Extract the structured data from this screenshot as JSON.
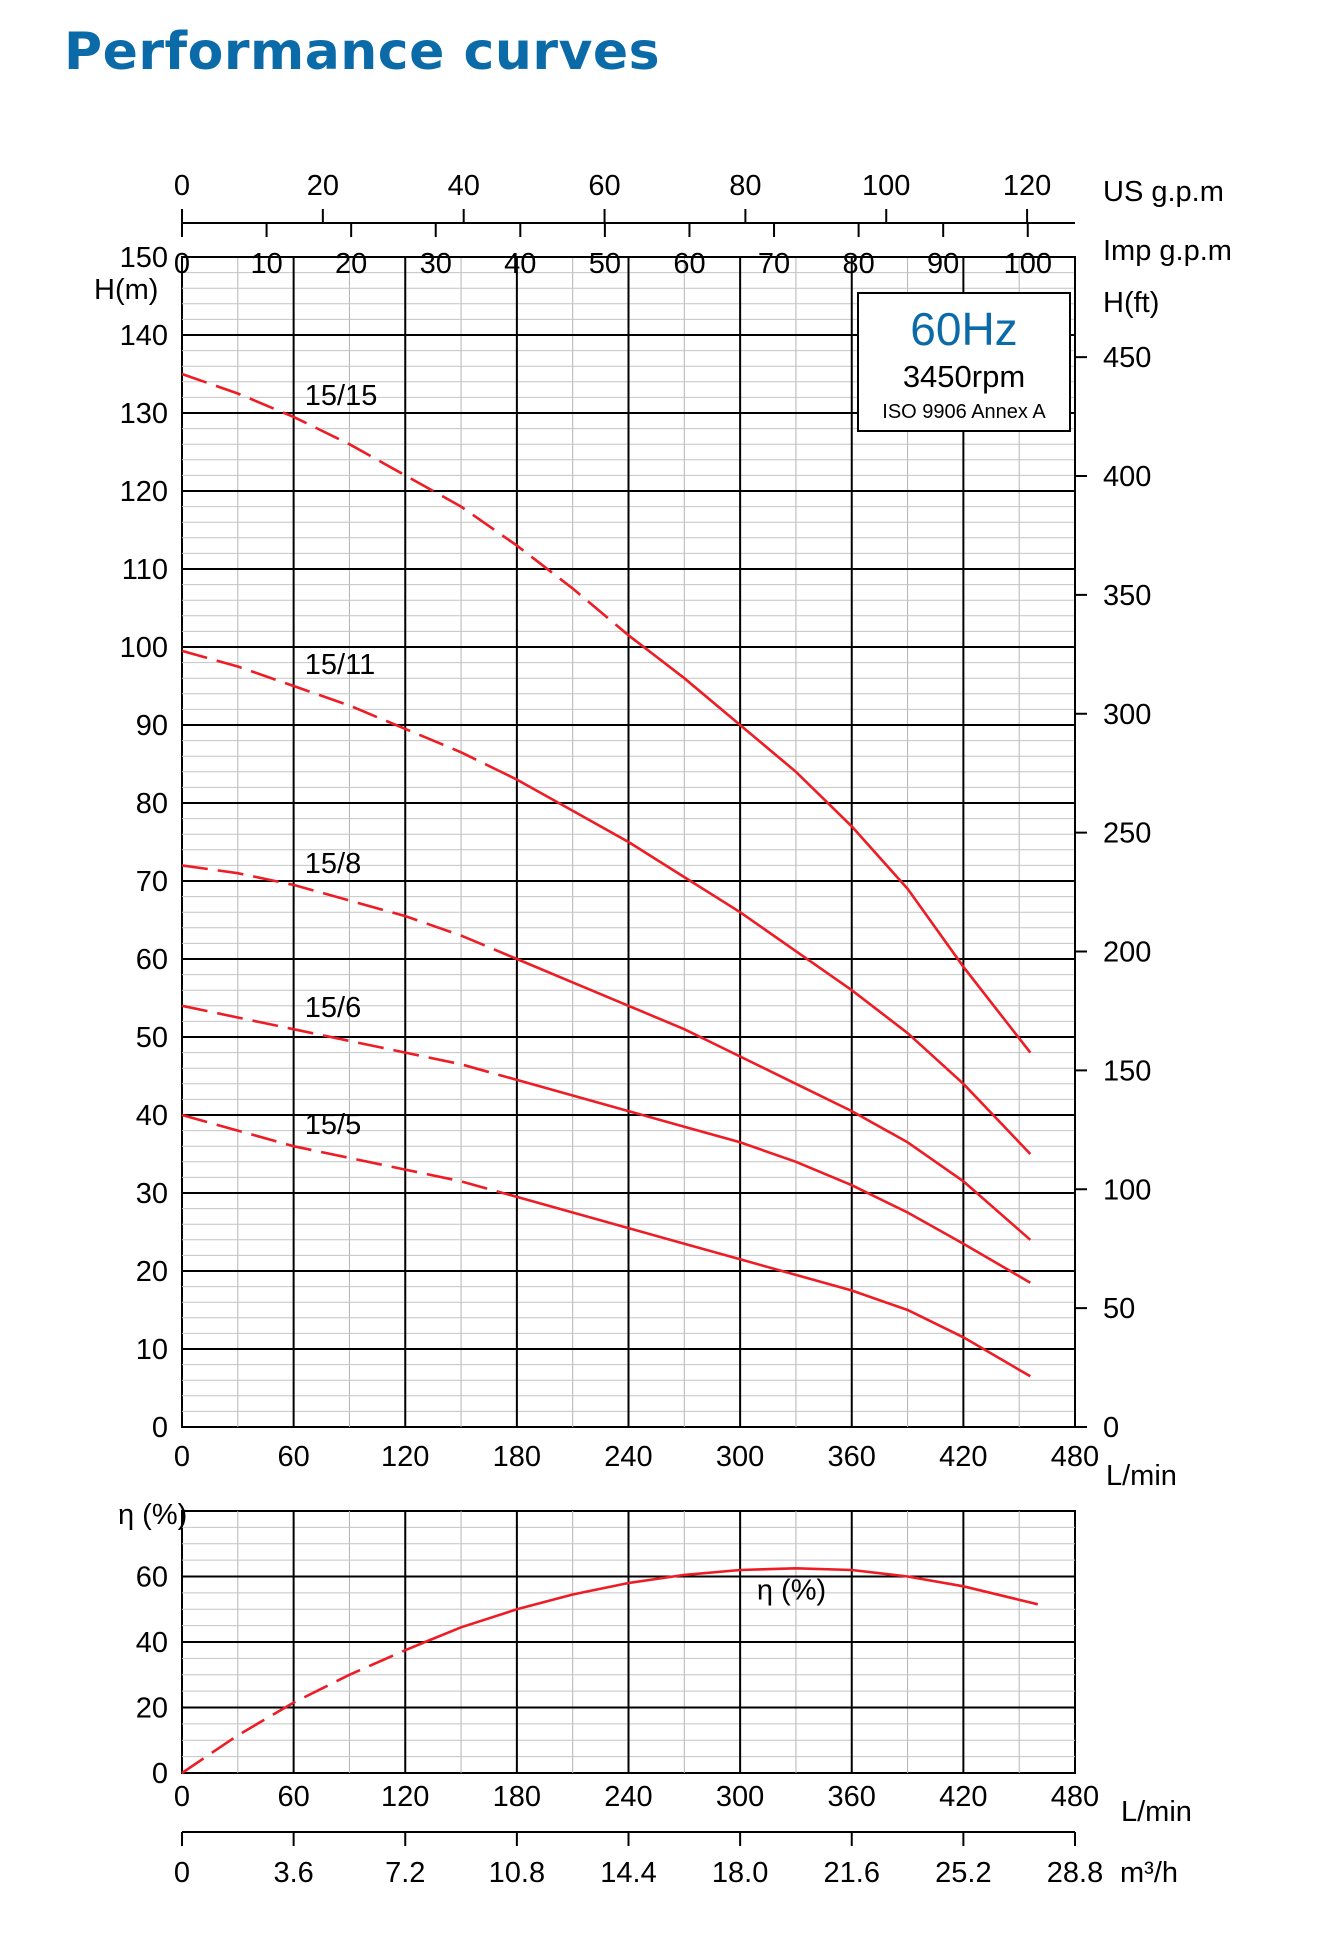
{
  "page": {
    "title": "Performance curves"
  },
  "chart_data": [
    {
      "type": "line",
      "title": "",
      "xlabel": "L/min",
      "ylabel": "H(m)",
      "y2label": "H(ft)",
      "xlim": [
        0,
        480
      ],
      "ylim": [
        0,
        150
      ],
      "y2lim": [
        0,
        450
      ],
      "x_ticks": [
        0,
        60,
        120,
        180,
        240,
        300,
        360,
        420,
        480
      ],
      "y_ticks": [
        0,
        10,
        20,
        30,
        40,
        50,
        60,
        70,
        80,
        90,
        100,
        110,
        120,
        130,
        140,
        150
      ],
      "y2_ticks": [
        0,
        50,
        100,
        150,
        200,
        250,
        300,
        350,
        400,
        450
      ],
      "grid": true,
      "top_axes": [
        {
          "label": "US g.p.m",
          "ticks": [
            0,
            20,
            40,
            60,
            80,
            100,
            120
          ]
        },
        {
          "label": "Imp g.p.m",
          "ticks": [
            0,
            10,
            20,
            30,
            40,
            50,
            60,
            70,
            80,
            90,
            100
          ]
        }
      ],
      "info_box": {
        "frequency": "60Hz",
        "speed": "3450rpm",
        "standard": "ISO 9906 Annex A"
      },
      "series": [
        {
          "name": "15/15",
          "dash_until": 240,
          "color": "#ee1c24",
          "x": [
            0,
            30,
            60,
            90,
            120,
            150,
            180,
            210,
            240,
            270,
            300,
            330,
            360,
            390,
            420,
            456
          ],
          "y": [
            135,
            132.5,
            129.5,
            126,
            122,
            118,
            113,
            107.5,
            101.5,
            96,
            90,
            84,
            77,
            69,
            59,
            48
          ]
        },
        {
          "name": "15/11",
          "dash_until": 170,
          "color": "#ee1c24",
          "x": [
            0,
            30,
            60,
            90,
            120,
            150,
            180,
            210,
            240,
            270,
            300,
            330,
            360,
            390,
            420,
            456
          ],
          "y": [
            99.5,
            97.5,
            95,
            92.5,
            89.5,
            86.5,
            83,
            79,
            75,
            70.5,
            66,
            61,
            56,
            50.5,
            44,
            35
          ]
        },
        {
          "name": "15/8",
          "dash_until": 170,
          "color": "#ee1c24",
          "x": [
            0,
            30,
            60,
            90,
            120,
            150,
            180,
            210,
            240,
            270,
            300,
            330,
            360,
            390,
            420,
            456
          ],
          "y": [
            72,
            71,
            69.5,
            67.5,
            65.5,
            63,
            60,
            57,
            54,
            51,
            47.5,
            44,
            40.5,
            36.5,
            31.5,
            24
          ]
        },
        {
          "name": "15/6",
          "dash_until": 170,
          "color": "#ee1c24",
          "x": [
            0,
            30,
            60,
            90,
            120,
            150,
            180,
            210,
            240,
            270,
            300,
            330,
            360,
            390,
            420,
            456
          ],
          "y": [
            54,
            52.5,
            51,
            49.5,
            48,
            46.5,
            44.5,
            42.5,
            40.5,
            38.5,
            36.5,
            34,
            31,
            27.5,
            23.5,
            18.5
          ]
        },
        {
          "name": "15/5",
          "dash_until": 170,
          "color": "#ee1c24",
          "x": [
            0,
            30,
            60,
            90,
            120,
            150,
            180,
            210,
            240,
            270,
            300,
            330,
            360,
            390,
            420,
            456
          ],
          "y": [
            40,
            38,
            36,
            34.5,
            33,
            31.5,
            29.5,
            27.5,
            25.5,
            23.5,
            21.5,
            19.5,
            17.5,
            15,
            11.5,
            6.5
          ]
        }
      ]
    },
    {
      "type": "line",
      "title": "",
      "xlabel": "L/min",
      "ylabel": "η (%)",
      "x2label": "m³/h",
      "xlim": [
        0,
        480
      ],
      "ylim": [
        0,
        80
      ],
      "x_ticks": [
        0,
        60,
        120,
        180,
        240,
        300,
        360,
        420,
        480
      ],
      "y_ticks": [
        0,
        20,
        40,
        60
      ],
      "x2_ticks": [
        "0",
        "3.6",
        "7.2",
        "10.8",
        "14.4",
        "18.0",
        "21.6",
        "25.2",
        "28.8"
      ],
      "grid": true,
      "series": [
        {
          "name": "η (%)",
          "dash_until": 130,
          "color": "#ee1c24",
          "x": [
            0,
            30,
            60,
            90,
            120,
            150,
            180,
            210,
            240,
            270,
            300,
            330,
            360,
            390,
            420,
            460
          ],
          "y": [
            0,
            11.5,
            21.5,
            30,
            37.5,
            44.5,
            50,
            54.5,
            58,
            60.5,
            62,
            62.5,
            62,
            60,
            57,
            51.5
          ]
        }
      ]
    }
  ]
}
